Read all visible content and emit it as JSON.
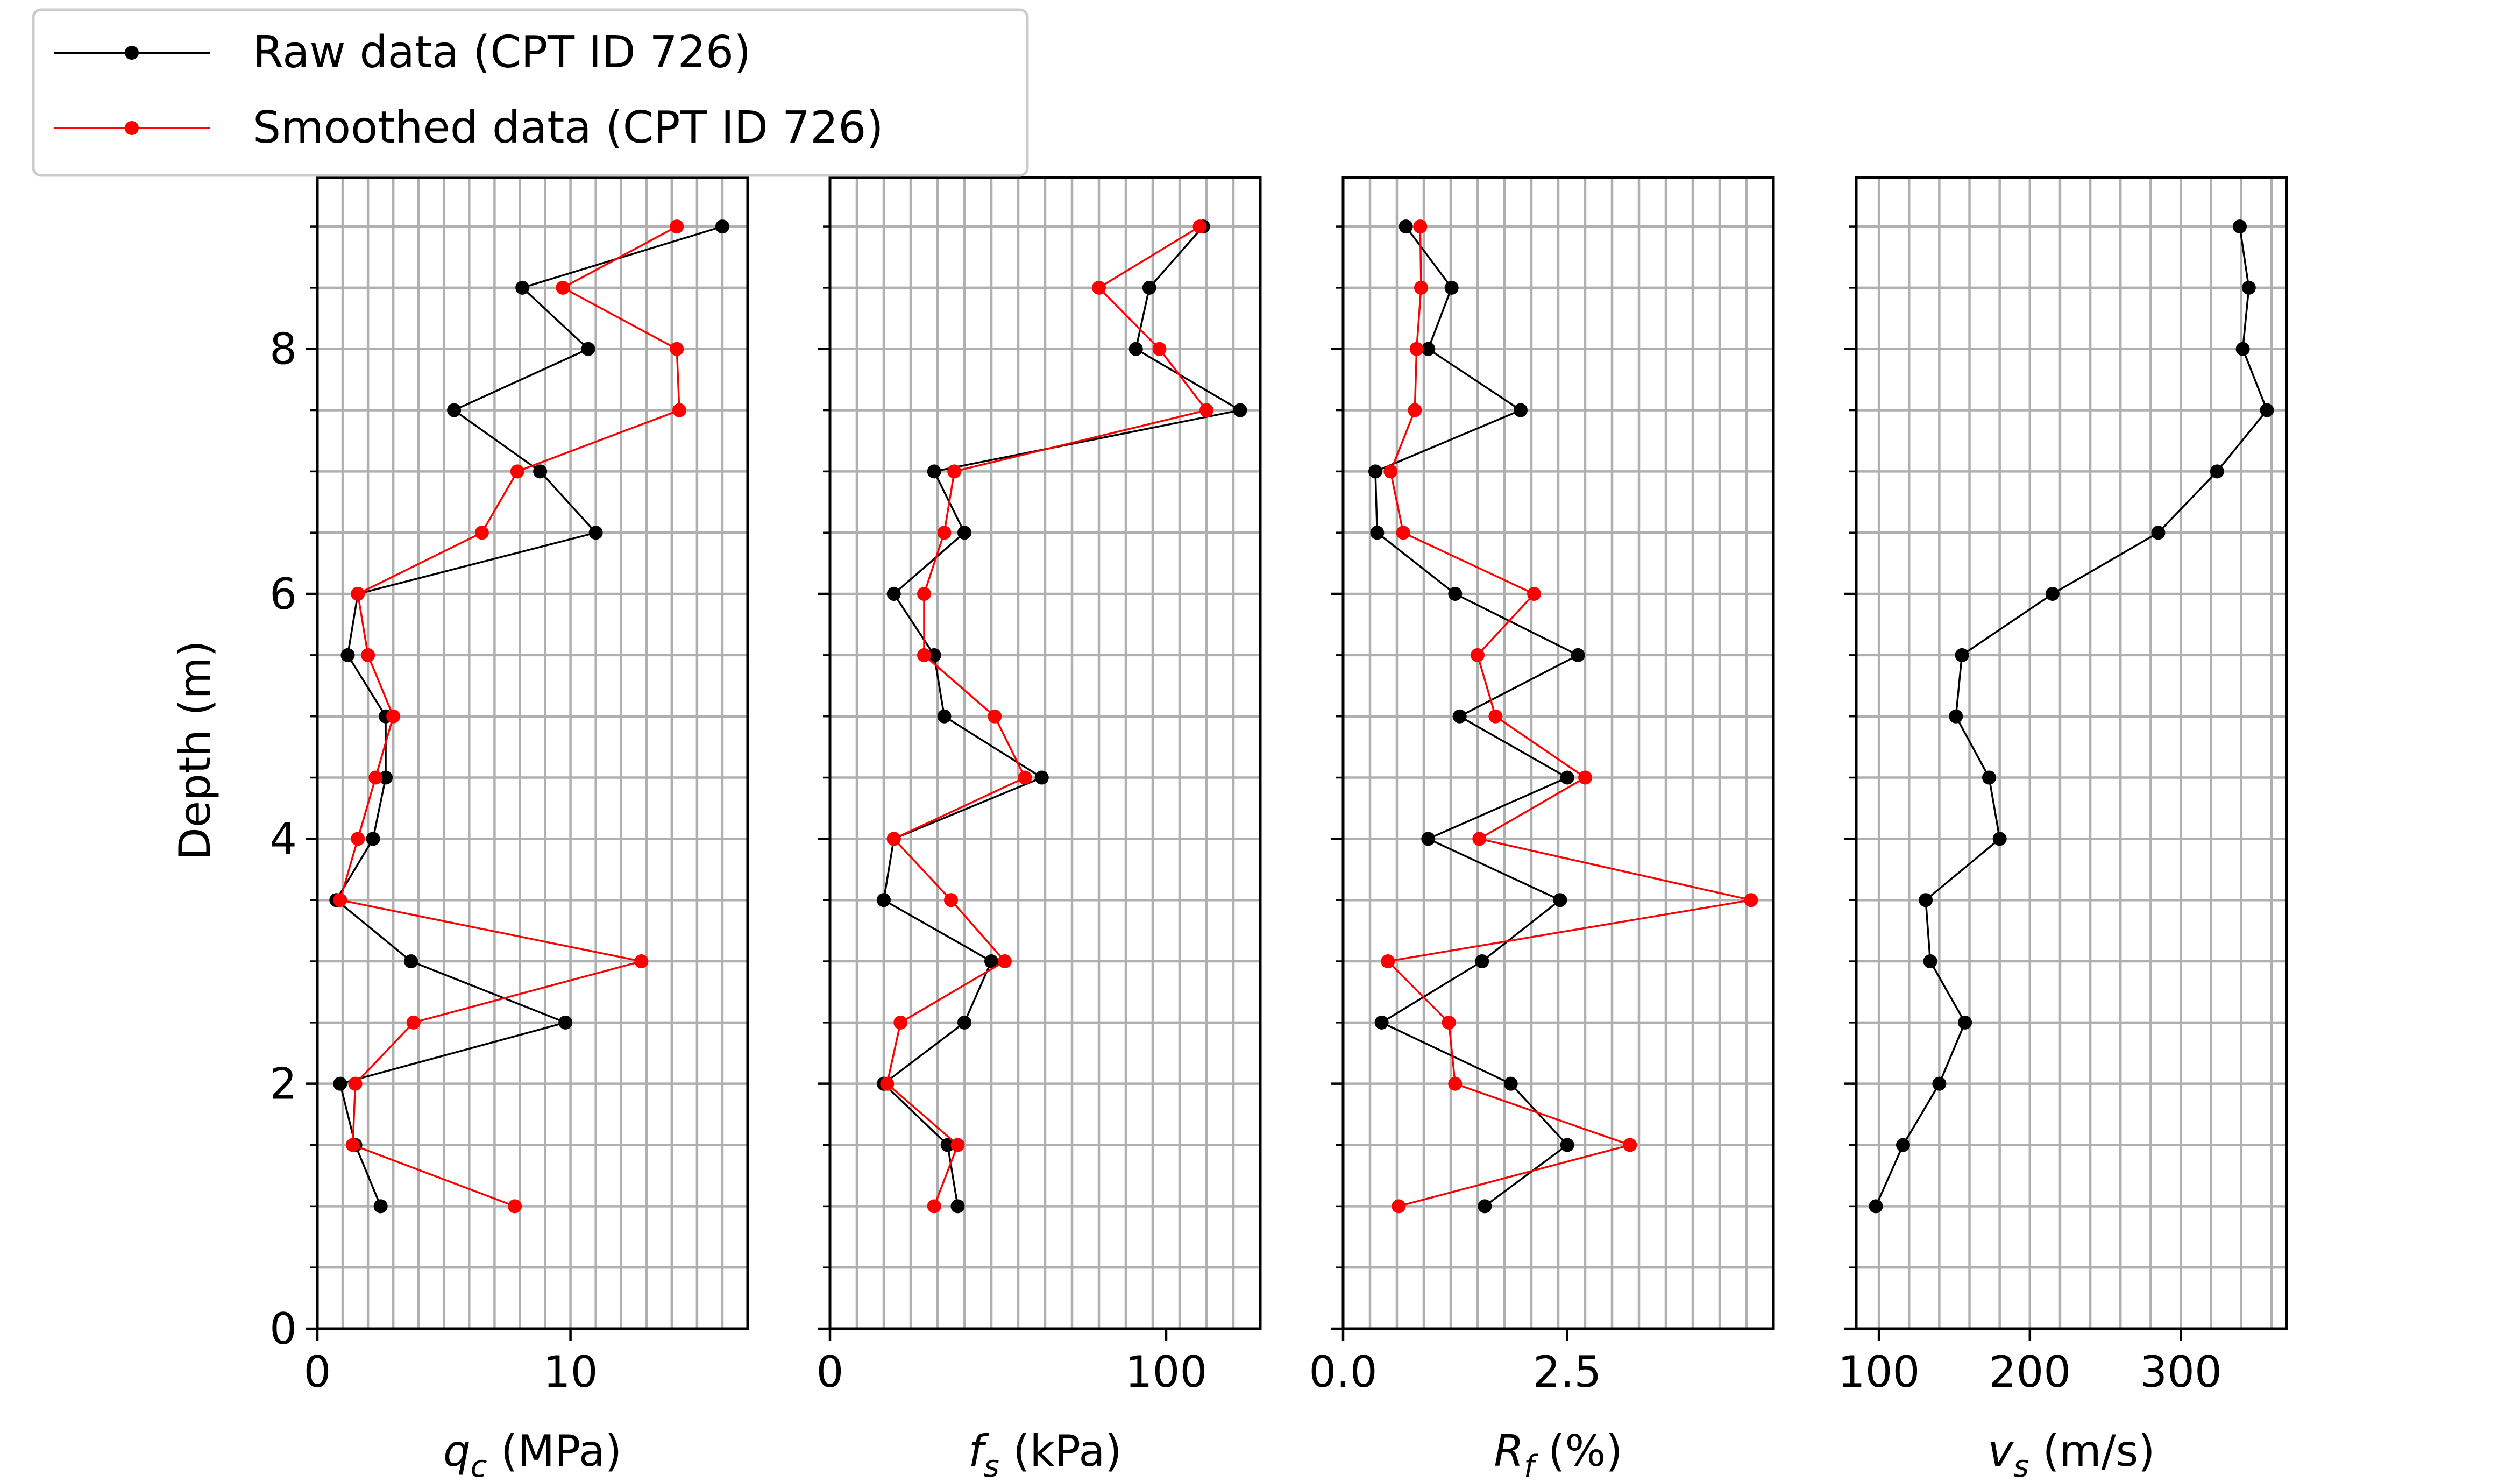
{
  "chart_data": [
    {
      "type": "line",
      "panel": "qc",
      "xlabel": {
        "sym": "q",
        "sub": "c",
        "unit": " (MPa)"
      },
      "ylabel": "Depth (m)",
      "xlim": [
        0,
        17
      ],
      "ylim": [
        0,
        9.4
      ],
      "xgrid_step": 1,
      "xticks": [
        0,
        10
      ],
      "xtick_labels": [
        "0",
        "10"
      ],
      "series": [
        {
          "name": "Raw data (CPT ID 726)",
          "color": "#000000",
          "x": [
            2.5,
            1.5,
            0.9,
            9.8,
            3.7,
            0.75,
            2.2,
            2.7,
            2.7,
            1.2,
            1.6,
            11.0,
            8.8,
            5.4,
            10.7,
            8.1,
            16.0
          ],
          "y": [
            1.0,
            1.5,
            2.0,
            2.5,
            3.0,
            3.5,
            4.0,
            4.5,
            5.0,
            5.5,
            6.0,
            6.5,
            7.0,
            7.5,
            8.0,
            8.5,
            9.0
          ]
        },
        {
          "name": "Smoothed data (CPT ID 726)",
          "color": "#ff0000",
          "x": [
            7.8,
            1.4,
            1.5,
            3.8,
            12.8,
            0.9,
            1.6,
            2.3,
            3.0,
            2.0,
            1.6,
            6.5,
            7.9,
            14.3,
            14.2,
            9.7,
            14.2
          ],
          "y": [
            1.0,
            1.5,
            2.0,
            2.5,
            3.0,
            3.5,
            4.0,
            4.5,
            5.0,
            5.5,
            6.0,
            6.5,
            7.0,
            7.5,
            8.0,
            8.5,
            9.0
          ]
        }
      ]
    },
    {
      "type": "line",
      "panel": "fs",
      "xlabel": {
        "sym": "f",
        "sub": "s",
        "unit": " (kPa)"
      },
      "xlim": [
        0,
        128
      ],
      "ylim": [
        0,
        9.4
      ],
      "xgrid_step": 8,
      "xticks": [
        0,
        100
      ],
      "xtick_labels": [
        "0",
        "100"
      ],
      "series": [
        {
          "name": "Raw data (CPT ID 726)",
          "color": "#000000",
          "x": [
            38,
            35,
            16,
            40,
            48,
            16,
            19,
            63,
            34,
            31,
            19,
            40,
            31,
            122,
            91,
            95,
            111
          ],
          "y": [
            1.0,
            1.5,
            2.0,
            2.5,
            3.0,
            3.5,
            4.0,
            4.5,
            5.0,
            5.5,
            6.0,
            6.5,
            7.0,
            7.5,
            8.0,
            8.5,
            9.0
          ]
        },
        {
          "name": "Smoothed data (CPT ID 726)",
          "color": "#ff0000",
          "x": [
            31,
            38,
            17,
            21,
            52,
            36,
            19,
            58,
            49,
            28,
            28,
            34,
            37,
            112,
            98,
            80,
            110
          ],
          "y": [
            1.0,
            1.5,
            2.0,
            2.5,
            3.0,
            3.5,
            4.0,
            4.5,
            5.0,
            5.5,
            6.0,
            6.5,
            7.0,
            7.5,
            8.0,
            8.5,
            9.0
          ]
        }
      ]
    },
    {
      "type": "line",
      "panel": "rf",
      "xlabel": {
        "sym": "R",
        "sub": "f",
        "unit": " (%)"
      },
      "xlim": [
        0,
        4.8
      ],
      "ylim": [
        0,
        9.4
      ],
      "xgrid_step": 0.3,
      "xticks": [
        0.0,
        2.5
      ],
      "xtick_labels": [
        "0.0",
        "2.5"
      ],
      "series": [
        {
          "name": "Raw data (CPT ID 726)",
          "color": "#000000",
          "x": [
            1.58,
            2.5,
            1.87,
            0.43,
            1.55,
            2.42,
            0.95,
            2.5,
            1.3,
            2.62,
            1.25,
            0.38,
            0.36,
            1.98,
            0.95,
            1.21,
            0.7
          ],
          "y": [
            1.0,
            1.5,
            2.0,
            2.5,
            3.0,
            3.5,
            4.0,
            4.5,
            5.0,
            5.5,
            6.0,
            6.5,
            7.0,
            7.5,
            8.0,
            8.5,
            9.0
          ]
        },
        {
          "name": "Smoothed data (CPT ID 726)",
          "color": "#ff0000",
          "x": [
            0.62,
            3.2,
            1.25,
            1.18,
            0.5,
            4.55,
            1.52,
            2.7,
            1.7,
            1.5,
            2.13,
            0.67,
            0.53,
            0.8,
            0.82,
            0.87,
            0.86
          ],
          "y": [
            1.0,
            1.5,
            2.0,
            2.5,
            3.0,
            3.5,
            4.0,
            4.5,
            5.0,
            5.5,
            6.0,
            6.5,
            7.0,
            7.5,
            8.0,
            8.5,
            9.0
          ]
        }
      ]
    },
    {
      "type": "line",
      "panel": "vs",
      "xlabel": {
        "sym": "v",
        "sub": "s",
        "unit": " (m/s)"
      },
      "xlim": [
        85,
        370
      ],
      "ylim": [
        0,
        9.4
      ],
      "xgrid_step": 20,
      "xticks": [
        100,
        200,
        300
      ],
      "xtick_labels": [
        "100",
        "200",
        "300"
      ],
      "series": [
        {
          "name": "Raw data (CPT ID 726)",
          "color": "#000000",
          "x": [
            98,
            116,
            140,
            157,
            134,
            131,
            180,
            173,
            151,
            155,
            215,
            285,
            324,
            357,
            341,
            345,
            339
          ],
          "y": [
            1.0,
            1.5,
            2.0,
            2.5,
            3.0,
            3.5,
            4.0,
            4.5,
            5.0,
            5.5,
            6.0,
            6.5,
            7.0,
            7.5,
            8.0,
            8.5,
            9.0
          ]
        }
      ]
    }
  ],
  "shared_yaxis": {
    "label": "Depth (m)",
    "ticks": [
      0,
      2,
      4,
      6,
      8
    ],
    "tick_labels": [
      "0",
      "2",
      "4",
      "6",
      "8"
    ],
    "grid_step": 0.5
  },
  "legend": {
    "placement": "top-left",
    "entries": [
      {
        "label": "Raw data (CPT ID 726)",
        "color": "#000000"
      },
      {
        "label": "Smoothed data (CPT ID 726)",
        "color": "#ff0000"
      }
    ]
  }
}
